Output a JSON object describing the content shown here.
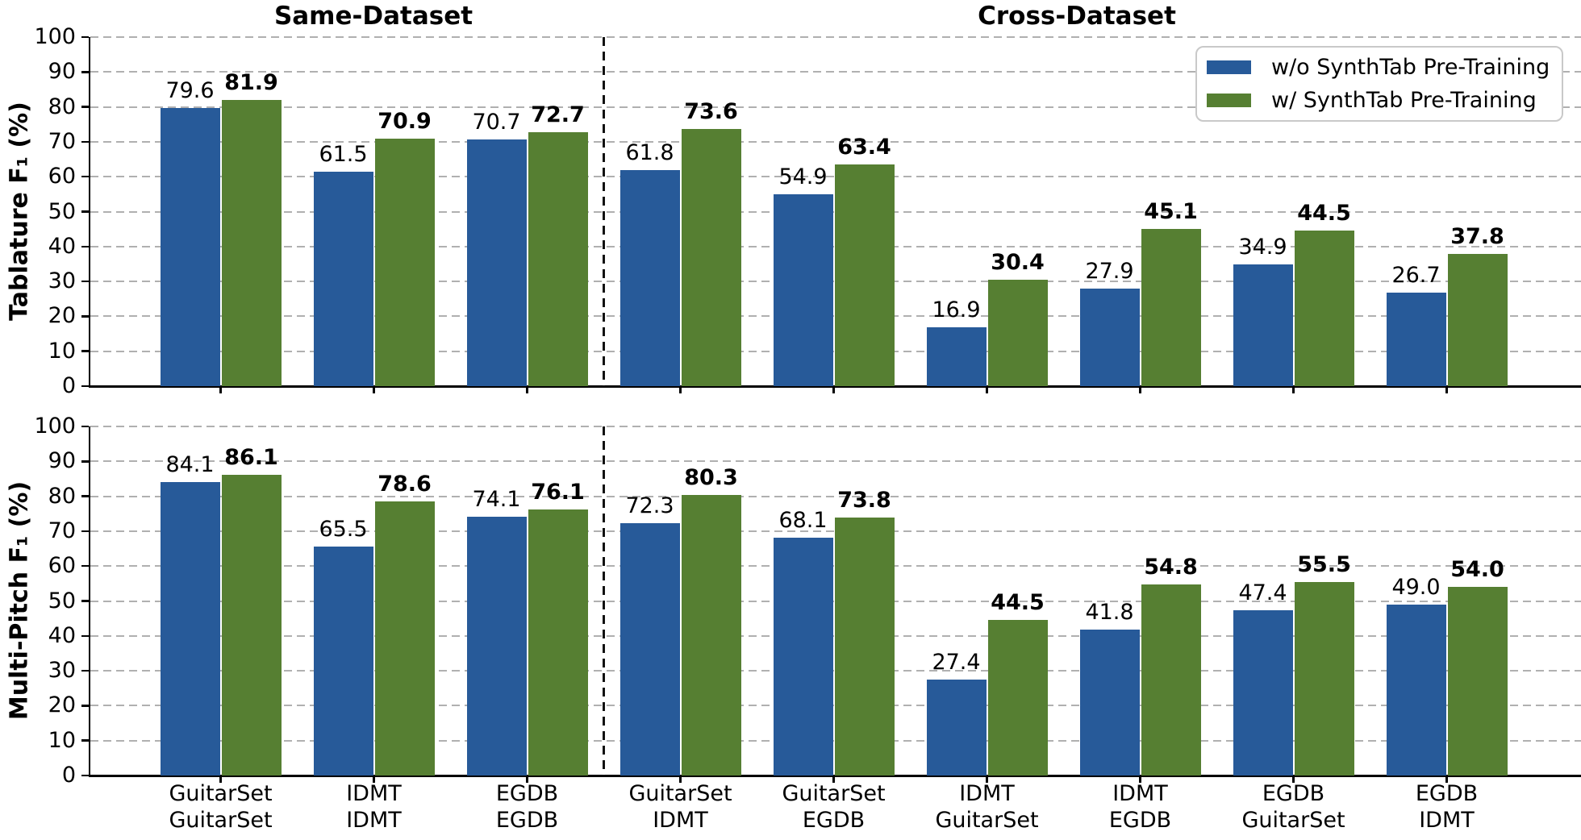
{
  "section_titles": [
    {
      "label": "Same-Dataset"
    },
    {
      "label": "Cross-Dataset"
    }
  ],
  "legend": {
    "position": "upper right",
    "items": [
      {
        "label": "w/o SynthTab Pre-Training",
        "color": "#275A99"
      },
      {
        "label": "w/ SynthTab Pre-Training",
        "color": "#567F32"
      }
    ]
  },
  "colors": {
    "without_pretraining": "#275A99",
    "with_pretraining": "#567F32",
    "grid": "#b0b0b0"
  },
  "chart_data": [
    {
      "type": "bar",
      "ylabel": "Tablature F₁ (%)",
      "xlabel": "",
      "ylim": [
        0,
        100
      ],
      "yticks": [
        0,
        10,
        20,
        30,
        40,
        50,
        60,
        70,
        80,
        90,
        100
      ],
      "grid": "horizontal-dashed",
      "categories": [
        [
          "GuitarSet",
          "GuitarSet"
        ],
        [
          "IDMT",
          "IDMT"
        ],
        [
          "EGDB",
          "EGDB"
        ],
        [
          "GuitarSet",
          "IDMT"
        ],
        [
          "GuitarSet",
          "EGDB"
        ],
        [
          "IDMT",
          "GuitarSet"
        ],
        [
          "IDMT",
          "EGDB"
        ],
        [
          "EGDB",
          "GuitarSet"
        ],
        [
          "EGDB",
          "IDMT"
        ]
      ],
      "series": [
        {
          "name": "w/o SynthTab Pre-Training",
          "color": "#275A99",
          "bold_labels": false,
          "values": [
            79.6,
            61.5,
            70.7,
            61.8,
            54.9,
            16.9,
            27.9,
            34.9,
            26.7
          ]
        },
        {
          "name": "w/ SynthTab Pre-Training",
          "color": "#567F32",
          "bold_labels": true,
          "values": [
            81.9,
            70.9,
            72.7,
            73.6,
            63.4,
            30.4,
            45.1,
            44.5,
            37.8
          ]
        }
      ],
      "separator_after_category_index": 2,
      "show_x_tick_labels": false
    },
    {
      "type": "bar",
      "ylabel": "Multi-Pitch F₁ (%)",
      "xlabel": "",
      "ylim": [
        0,
        100
      ],
      "yticks": [
        0,
        10,
        20,
        30,
        40,
        50,
        60,
        70,
        80,
        90,
        100
      ],
      "grid": "horizontal-dashed",
      "categories": [
        [
          "GuitarSet",
          "GuitarSet"
        ],
        [
          "IDMT",
          "IDMT"
        ],
        [
          "EGDB",
          "EGDB"
        ],
        [
          "GuitarSet",
          "IDMT"
        ],
        [
          "GuitarSet",
          "EGDB"
        ],
        [
          "IDMT",
          "GuitarSet"
        ],
        [
          "IDMT",
          "EGDB"
        ],
        [
          "EGDB",
          "GuitarSet"
        ],
        [
          "EGDB",
          "IDMT"
        ]
      ],
      "series": [
        {
          "name": "w/o SynthTab Pre-Training",
          "color": "#275A99",
          "bold_labels": false,
          "values": [
            84.1,
            65.5,
            74.1,
            72.3,
            68.1,
            27.4,
            41.8,
            47.4,
            49.0
          ]
        },
        {
          "name": "w/ SynthTab Pre-Training",
          "color": "#567F32",
          "bold_labels": true,
          "values": [
            86.1,
            78.6,
            76.1,
            80.3,
            73.8,
            44.5,
            54.8,
            55.5,
            54.0
          ]
        }
      ],
      "separator_after_category_index": 2,
      "show_x_tick_labels": true
    }
  ]
}
